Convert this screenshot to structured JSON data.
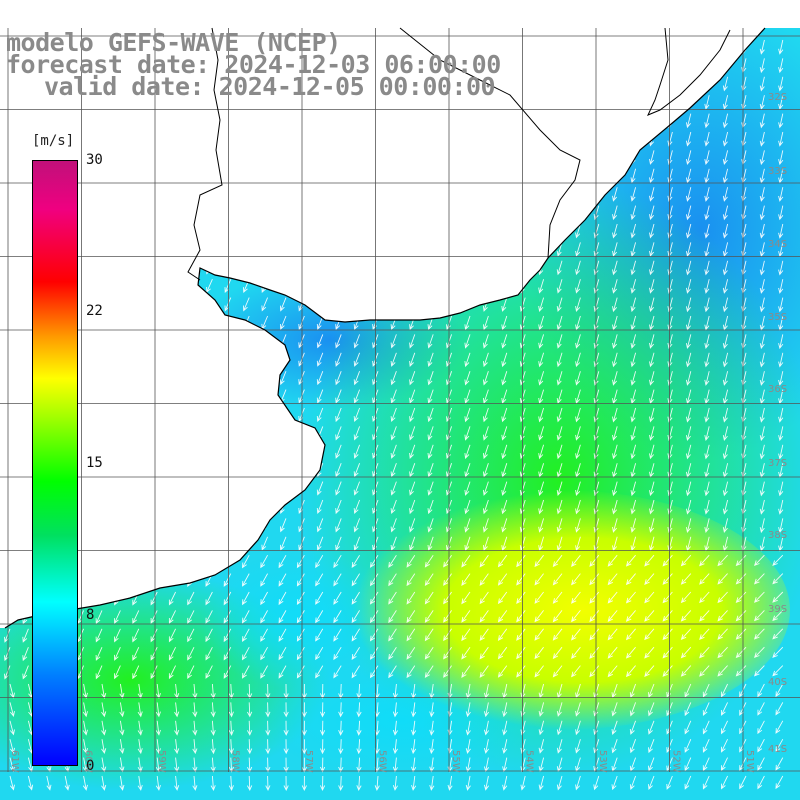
{
  "title": {
    "line1": "modelo GEFS-WAVE (NCEP)",
    "line2": "forecast date: 2024-12-03 06:00:00",
    "line3": "valid date: 2024-12-05 00:00:00"
  },
  "colorbar": {
    "unit": "[m/s]",
    "ticks": [
      "30",
      "22",
      "15",
      "8",
      "0"
    ],
    "min": 0,
    "max": 30,
    "colors": [
      "#0000ff",
      "#0080ff",
      "#00ffff",
      "#00e060",
      "#00ff00",
      "#a8ff00",
      "#ffff00",
      "#ff9900",
      "#ff0000",
      "#f00080",
      "#c0107a"
    ]
  },
  "lat_labels": [
    "32S",
    "33S",
    "34S",
    "35S",
    "36S",
    "37S",
    "38S",
    "39S",
    "40S",
    "41S"
  ],
  "lon_labels": [
    "61W",
    "60W",
    "59W",
    "58W",
    "57W",
    "56W",
    "55W",
    "54W",
    "53W",
    "52W",
    "51W"
  ],
  "field": {
    "variable": "wind speed",
    "land_color": "#ffffff",
    "coast_color": "#000000",
    "arrow_color": "#ffffff",
    "grid_color": "#555555"
  }
}
